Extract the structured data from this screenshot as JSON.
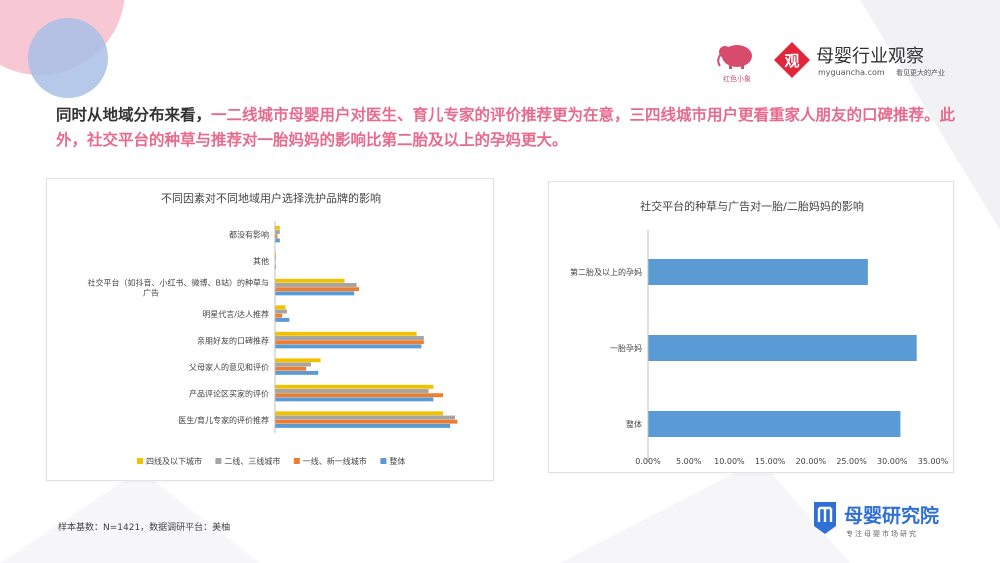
{
  "headline": {
    "part1": "同时从地域分布来看，",
    "part2": "一二线城市母婴用户对医生、育儿专家的评价推荐更为在意，三四线城市用户更看重家人朋友的口碑推荐。此外，社交平台的种草与推荐对一胎妈妈的影响比第二胎及以上的孕妈更大。"
  },
  "brand": {
    "logo1_text": "红色小象",
    "logo2_glyph": "观",
    "logo2_name": "母婴行业观察",
    "logo2_url": "myguancha.com",
    "logo2_slogan": "看见更大的产业",
    "logo3_name": "母婴研究院",
    "logo3_slogan": "专注母婴市场研究"
  },
  "footnote": "样本基数：N=1421，数据调研平台：美柚",
  "colors": {
    "yellow": "#f2c200",
    "gray": "#a5a5a5",
    "orange": "#ed7d31",
    "blue": "#5b9bd5",
    "accent_pink": "#e86a8d"
  },
  "chart_data": [
    {
      "type": "bar",
      "orientation": "horizontal",
      "title": "不同因素对不同地域用户选择洗护品牌的影响",
      "categories": [
        "都没有影响",
        "其他",
        "社交平台（如抖音、小红书、微博、B站）的种草与广告",
        "明星代言/达人推荐",
        "亲朋好友的口碑推荐",
        "父母家人的意见和评价",
        "产品评论区买家的评价",
        "医生/育儿专家的评价推荐"
      ],
      "series": [
        {
          "name": "四线及以下城市",
          "color": "#f2c200",
          "values": [
            1.0,
            0.2,
            14.5,
            2.2,
            29.5,
            9.5,
            33.0,
            35.0
          ]
        },
        {
          "name": "二线、三线城市",
          "color": "#a5a5a5",
          "values": [
            1.0,
            0.2,
            17.0,
            2.5,
            31.0,
            7.5,
            32.0,
            37.5
          ]
        },
        {
          "name": "一线、新一线城市",
          "color": "#ed7d31",
          "values": [
            0.5,
            0.1,
            17.5,
            1.5,
            31.0,
            6.5,
            35.0,
            38.0
          ]
        },
        {
          "name": "整体",
          "color": "#5b9bd5",
          "values": [
            1.0,
            0.2,
            16.5,
            3.0,
            30.5,
            9.0,
            33.0,
            36.5
          ]
        }
      ],
      "legend_position": "bottom",
      "grid": false
    },
    {
      "type": "bar",
      "orientation": "horizontal",
      "title": "社交平台的种草与广告对一胎/二胎妈妈的影响",
      "categories": [
        "第二胎及以上的孕妈",
        "一胎孕妈",
        "整体"
      ],
      "values": [
        27.0,
        33.0,
        31.0
      ],
      "color": "#5b9bd5",
      "xlim": [
        0,
        35
      ],
      "xticks": [
        "0.00%",
        "5.00%",
        "10.00%",
        "15.00%",
        "20.00%",
        "25.00%",
        "30.00%",
        "35.00%"
      ],
      "grid": false
    }
  ]
}
